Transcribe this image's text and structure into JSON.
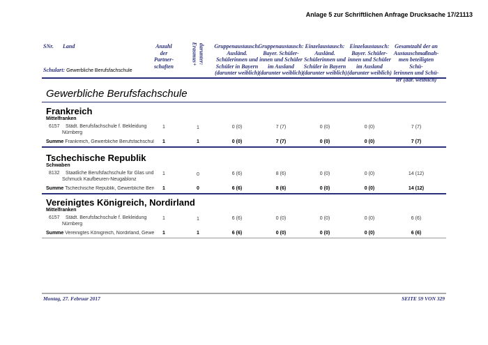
{
  "header": {
    "title": "Anlage 5 zur Schriftlichen Anfrage Drucksache 17/21113"
  },
  "columns": {
    "snr": "SNr.",
    "land": "Land",
    "schulart_label": "Schulart:",
    "schulart_value": "Gewerbliche Berufsfachschule",
    "c1": [
      "Anzahl",
      "der",
      "Partner-",
      "schaften"
    ],
    "c2": [
      "darunter:",
      "Erasmus+"
    ],
    "c3": [
      "Gruppenaustausch:",
      "Ausländ.",
      "Schülerinnen und",
      "Schüler in Bayern",
      "(darunter weiblich)"
    ],
    "c4": [
      "Gruppenaustausch:",
      "Bayer. Schüler-",
      "innen und Schüler",
      "im Ausland",
      "(darunter weiblich)"
    ],
    "c5": [
      "Einzelaustausch:",
      "Ausländ.",
      "Schülerinnen und",
      "Schüler in Bayern",
      "(darunter weiblich)"
    ],
    "c6": [
      "Einzelaustausch:",
      "Bayer. Schüler-",
      "innen und Schüler",
      "im Ausland",
      "(darunter weiblich)"
    ],
    "c7": [
      "Gesamtzahl der an",
      "Austauschmaßnah-",
      "men beteiligten Schü-",
      "lerinnen und Schü-",
      "ler (dar. weiblich)"
    ]
  },
  "section_title": "Gewerbliche Berufsfachschule",
  "countries": [
    {
      "name": "Frankreich",
      "region": "Mittelfranken",
      "school_nr": "6157",
      "school_l1": "Städt. Berufsfachschule f. Bekleidung",
      "school_l2": "Nürnberg",
      "values": [
        "1",
        "1",
        "0 (0)",
        "7 (7)",
        "0 (0)",
        "0 (0)",
        "7 (7)"
      ],
      "sum_label": "Summe",
      "sum_text": "Frankreich, Gewerbliche Berufsfachschule",
      "sum_values": [
        "1",
        "1",
        "0 (0)",
        "7 (7)",
        "0 (0)",
        "0 (0)",
        "7 (7)"
      ]
    },
    {
      "name": "Tschechische Republik",
      "region": "Schwaben",
      "school_nr": "8132",
      "school_l1": "Staatliche Berufsfachschule für Glas und",
      "school_l2": "Schmuck Kaufbeuren-Neugablonz",
      "values": [
        "1",
        "0",
        "6 (6)",
        "8 (6)",
        "0 (0)",
        "0 (0)",
        "14 (12)"
      ],
      "sum_label": "Summe",
      "sum_text": "Tschechische Republik, Gewerbliche Berufs",
      "sum_values": [
        "1",
        "0",
        "6 (6)",
        "8 (6)",
        "0 (0)",
        "0 (0)",
        "14 (12)"
      ]
    },
    {
      "name": "Vereinigtes Königreich, Nordirland",
      "region": "Mittelfranken",
      "school_nr": "6157",
      "school_l1": "Städt. Berufsfachschule f. Bekleidung",
      "school_l2": "Nürnberg",
      "values": [
        "1",
        "1",
        "6 (6)",
        "0 (0)",
        "0 (0)",
        "0 (0)",
        "6 (6)"
      ],
      "sum_label": "Summe",
      "sum_text": "Vereinigtes Königreich, Nordirland, Gewerbli",
      "sum_values": [
        "1",
        "1",
        "6 (6)",
        "0 (0)",
        "0 (0)",
        "0 (0)",
        "6 (6)"
      ]
    }
  ],
  "footer": {
    "date": "Montag, 27. Februar 2017",
    "page": "SEITE 59 VON 329"
  }
}
